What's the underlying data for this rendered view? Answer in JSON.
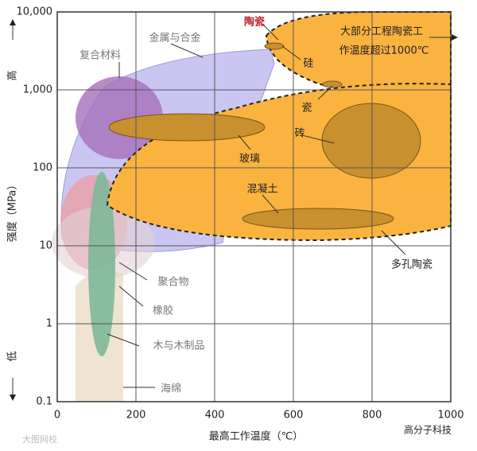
{
  "chart_data": {
    "type": "region",
    "xlabel": "最高工作温度（℃）",
    "ylabel": "强度（MPa）",
    "y_high": "高",
    "y_low": "低",
    "xlim": [
      0,
      1000
    ],
    "ylim": [
      0.1,
      10000
    ],
    "log_y": true,
    "grid": true,
    "xticks": [
      0,
      200,
      400,
      600,
      800,
      1000
    ],
    "yticks": [
      0.1,
      1,
      10,
      100,
      {
        "value": 1000,
        "label": "1,000"
      },
      {
        "value": 10000,
        "label": "10,000"
      }
    ],
    "annotations": {
      "ceramics": "陶瓷",
      "ceramics_note_1": "大部分工程陶瓷工",
      "ceramics_note_2": "作温度超过1000℃",
      "silicon": "硅",
      "porcelain": "瓷",
      "brick": "砖",
      "glass": "玻璃",
      "concrete": "混凝土",
      "porous_ceramics": "多孔陶瓷",
      "metals": "金属与合金",
      "composites": "复合材料",
      "polymers": "聚合物",
      "rubber": "橡胶",
      "wood": "木与木制品",
      "foam": "海绵"
    },
    "watermark_left": "大图网校",
    "watermark_right": "高分子科技"
  }
}
